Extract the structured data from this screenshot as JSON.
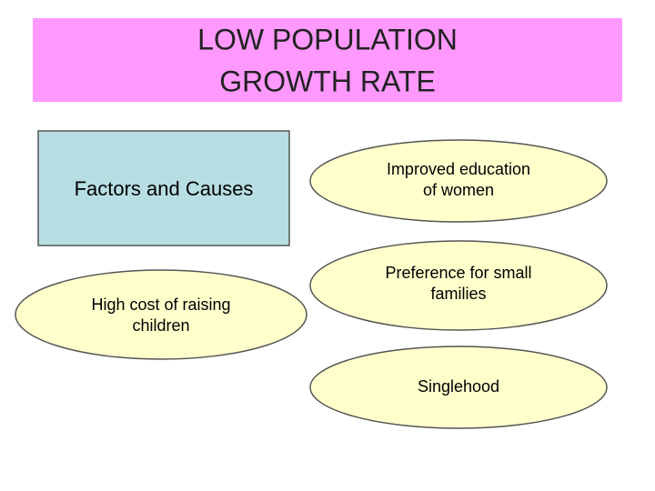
{
  "title": {
    "line1": "LOW POPULATION",
    "line2": "GROWTH RATE"
  },
  "box": {
    "label": "Factors and Causes"
  },
  "nodes": [
    {
      "label": "High cost of raising",
      "label2": "children"
    },
    {
      "label": "Improved education",
      "label2": "of women"
    },
    {
      "label": "Preference for small",
      "label2": "families"
    },
    {
      "label": "Singlehood"
    }
  ]
}
